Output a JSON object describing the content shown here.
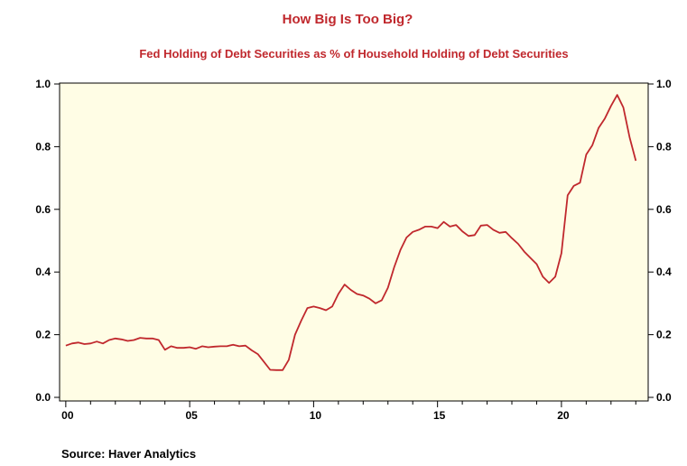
{
  "chart_data": {
    "type": "line",
    "title": "How Big Is Too Big?",
    "subtitle": "Fed Holding of Debt Securities as % of Household Holding of Debt Securities",
    "source": "Source:  Haver Analytics",
    "xlim": [
      1999.75,
      2023.5
    ],
    "ylim": [
      0,
      1.0
    ],
    "x_ticks": [
      {
        "value": 2000,
        "label": "00"
      },
      {
        "value": 2005,
        "label": "05"
      },
      {
        "value": 2010,
        "label": "10"
      },
      {
        "value": 2015,
        "label": "15"
      },
      {
        "value": 2020,
        "label": "20"
      }
    ],
    "y_ticks": [
      {
        "value": 0.0,
        "label": "0.0"
      },
      {
        "value": 0.2,
        "label": "0.2"
      },
      {
        "value": 0.4,
        "label": "0.4"
      },
      {
        "value": 0.6,
        "label": "0.6"
      },
      {
        "value": 0.8,
        "label": "0.8"
      },
      {
        "value": 1.0,
        "label": "1.0"
      }
    ],
    "grid": false,
    "colors": {
      "line": "#c0282d",
      "plot_bg": "#fffde5",
      "axis": "#000000"
    },
    "series": [
      {
        "x": [
          2000.0,
          2000.25,
          2000.5,
          2000.75,
          2001.0,
          2001.25,
          2001.5,
          2001.75,
          2002.0,
          2002.25,
          2002.5,
          2002.75,
          2003.0,
          2003.25,
          2003.5,
          2003.75,
          2004.0,
          2004.25,
          2004.5,
          2004.75,
          2005.0,
          2005.25,
          2005.5,
          2005.75,
          2006.0,
          2006.25,
          2006.5,
          2006.75,
          2007.0,
          2007.25,
          2007.5,
          2007.75,
          2008.0,
          2008.25,
          2008.5,
          2008.75,
          2009.0,
          2009.25,
          2009.5,
          2009.75,
          2010.0,
          2010.25,
          2010.5,
          2010.75,
          2011.0,
          2011.25,
          2011.5,
          2011.75,
          2012.0,
          2012.25,
          2012.5,
          2012.75,
          2013.0,
          2013.25,
          2013.5,
          2013.75,
          2014.0,
          2014.25,
          2014.5,
          2014.75,
          2015.0,
          2015.25,
          2015.5,
          2015.75,
          2016.0,
          2016.25,
          2016.5,
          2016.75,
          2017.0,
          2017.25,
          2017.5,
          2017.75,
          2018.0,
          2018.25,
          2018.5,
          2018.75,
          2019.0,
          2019.25,
          2019.5,
          2019.75,
          2020.0,
          2020.25,
          2020.5,
          2020.75,
          2021.0,
          2021.25,
          2021.5,
          2021.75,
          2022.0,
          2022.25,
          2022.5,
          2022.75,
          2023.0
        ],
        "y": [
          0.165,
          0.172,
          0.175,
          0.17,
          0.172,
          0.178,
          0.172,
          0.183,
          0.188,
          0.185,
          0.18,
          0.183,
          0.19,
          0.188,
          0.188,
          0.183,
          0.152,
          0.163,
          0.158,
          0.158,
          0.16,
          0.155,
          0.163,
          0.16,
          0.162,
          0.163,
          0.163,
          0.168,
          0.163,
          0.165,
          0.15,
          0.138,
          0.113,
          0.088,
          0.087,
          0.087,
          0.12,
          0.2,
          0.245,
          0.285,
          0.29,
          0.285,
          0.278,
          0.29,
          0.33,
          0.36,
          0.343,
          0.33,
          0.325,
          0.315,
          0.3,
          0.31,
          0.35,
          0.415,
          0.47,
          0.51,
          0.528,
          0.535,
          0.545,
          0.545,
          0.54,
          0.56,
          0.545,
          0.55,
          0.53,
          0.515,
          0.518,
          0.548,
          0.55,
          0.535,
          0.525,
          0.528,
          0.508,
          0.49,
          0.465,
          0.445,
          0.425,
          0.385,
          0.365,
          0.385,
          0.46,
          0.645,
          0.675,
          0.685,
          0.775,
          0.805,
          0.86,
          0.89,
          0.93,
          0.965,
          0.925,
          0.83,
          0.755
        ]
      }
    ]
  }
}
